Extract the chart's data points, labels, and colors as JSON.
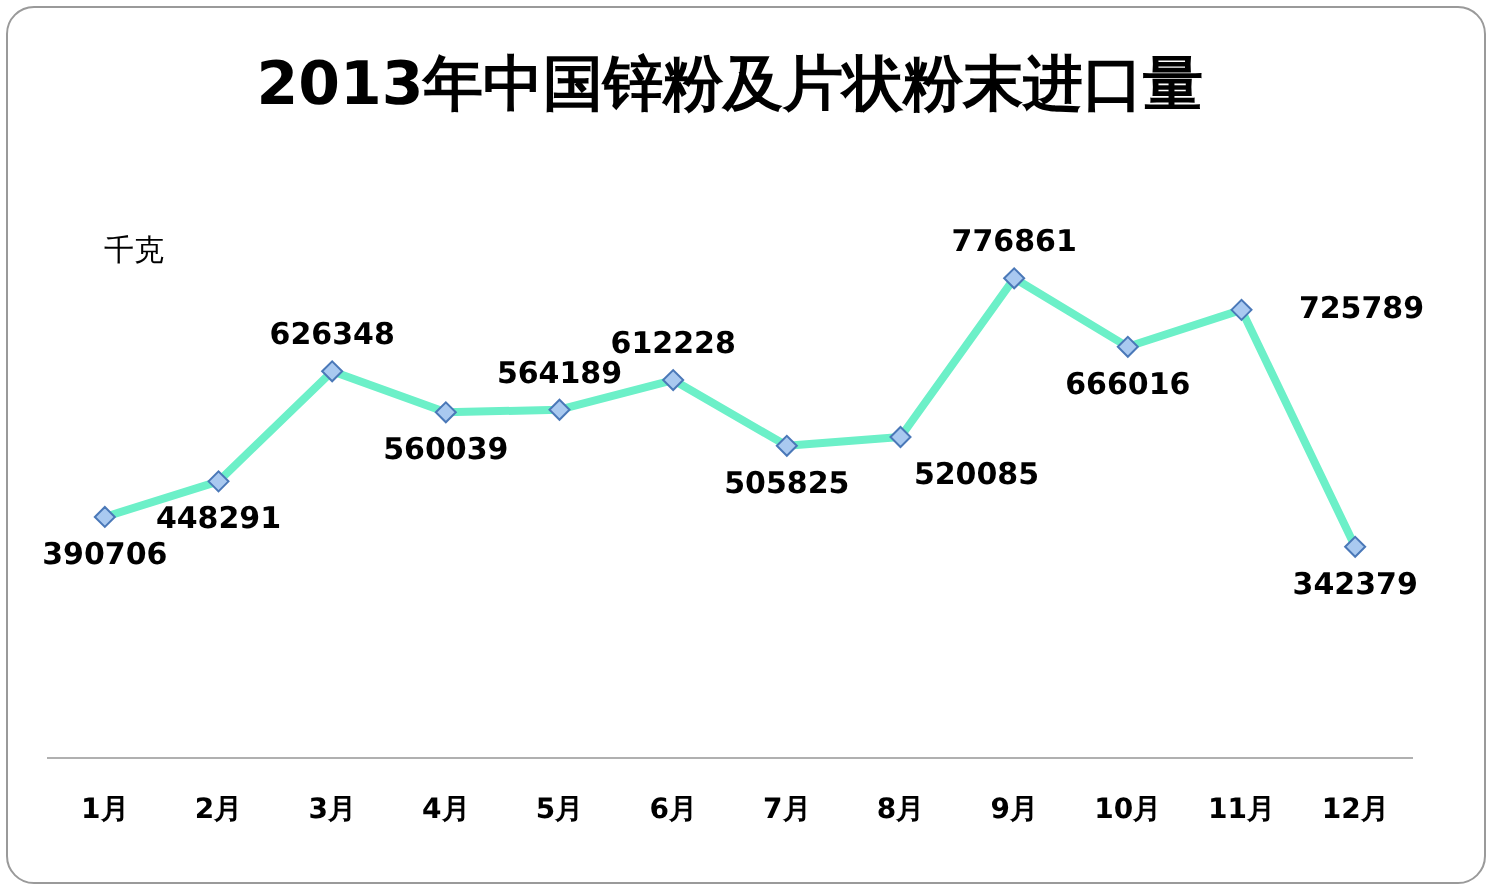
{
  "chart_data": {
    "type": "line",
    "title": "2013年中国锌粉及片状粉末进口量",
    "ylabel": "千克",
    "categories": [
      "1月",
      "2月",
      "3月",
      "4月",
      "5月",
      "6月",
      "7月",
      "8月",
      "9月",
      "10月",
      "11月",
      "12月"
    ],
    "series": [
      {
        "color": "#6cf0c8",
        "values": [
          390706,
          448291,
          626348,
          560039,
          564189,
          612228,
          505825,
          520085,
          776861,
          666016,
          725789,
          342379
        ]
      }
    ],
    "marker": "diamond",
    "data_labels": true
  }
}
